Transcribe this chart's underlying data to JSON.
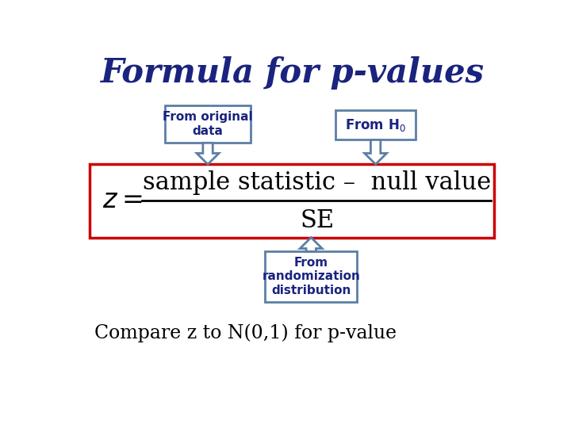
{
  "title": "Formula for p-values",
  "title_color": "#1a237e",
  "title_fontsize": 30,
  "bg_color": "#ffffff",
  "formula_box_color": "#cc0000",
  "formula_numerator": "sample statistic –  null value",
  "formula_denominator": "SE",
  "label_original_data": "From original\ndata",
  "label_h0": "From H$_0$",
  "label_randomization": "From\nrandomization\ndistribution",
  "label_box_color": "#5b7fa6",
  "label_text_color": "#1a237e",
  "label_fontsize": 11,
  "compare_text": "Compare z to N(0,1) for p-value",
  "compare_fontsize": 17,
  "compare_color": "#000000",
  "arrow_color": "#5b7fa6",
  "arrow_fill": "#ffffff"
}
